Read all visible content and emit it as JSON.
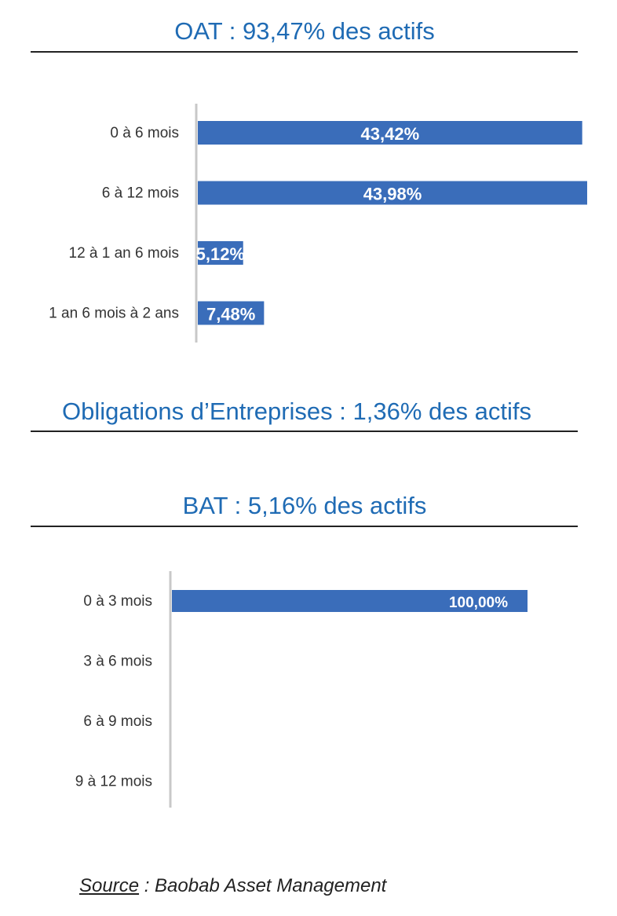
{
  "sections": {
    "oat": {
      "title": "OAT :  93,47% des actifs"
    },
    "obligations": {
      "title": "Obligations d’Entreprises :  1,36% des actifs"
    },
    "bat": {
      "title": "BAT :  5,16% des actifs"
    }
  },
  "chart_data": [
    {
      "type": "bar",
      "orientation": "horizontal",
      "categories": [
        "0 à 6 mois",
        "6 à 12 mois",
        "12 à 1 an 6 mois",
        "1 an  6 mois à 2 ans"
      ],
      "values": [
        43.42,
        43.98,
        5.12,
        7.48
      ],
      "labels": [
        "43,42%",
        "43,98%",
        "5,12%",
        "7,48%"
      ],
      "xlim": [
        0,
        43.98
      ],
      "color": "#3A6DBA"
    },
    {
      "type": "bar",
      "orientation": "horizontal",
      "categories": [
        "0 à 3 mois",
        "3 à 6 mois",
        "6 à 9 mois",
        "9 à 12 mois"
      ],
      "values": [
        100,
        0,
        0,
        0
      ],
      "labels": [
        "100,00%",
        "",
        "",
        ""
      ],
      "xlim": [
        0,
        100
      ],
      "color": "#3A6DBA"
    }
  ],
  "source": {
    "prefix": "Source",
    "rest": " : Baobab Asset Management"
  }
}
